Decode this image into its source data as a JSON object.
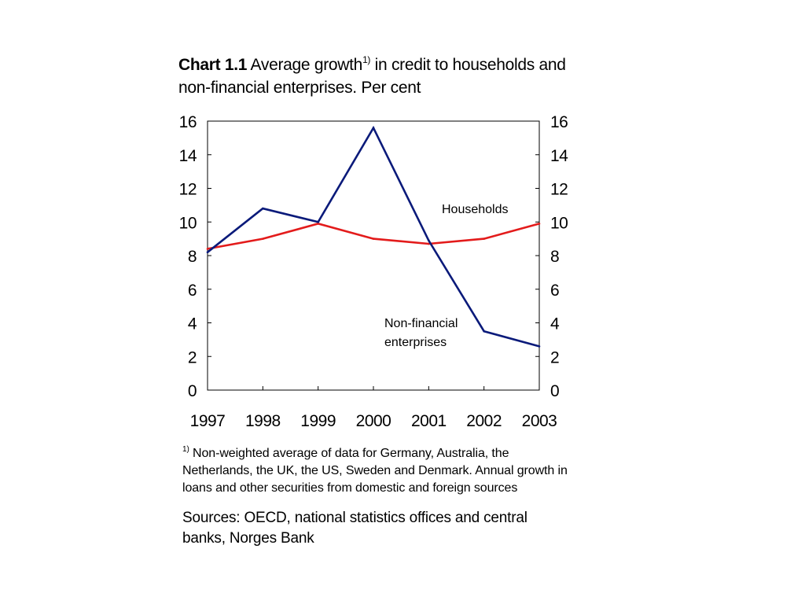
{
  "title": {
    "label": "Chart 1.1",
    "text_before_sup": " Average growth",
    "sup": "1)",
    "text_after_sup": " in credit to households and non-financial enterprises. Per cent"
  },
  "footnote": {
    "marker": "1)",
    "text": " Non-weighted average of data for Germany, Australia, the Netherlands, the UK, the US, Sweden and Denmark. Annual growth in loans and other securities from domestic and foreign sources"
  },
  "sources": "Sources: OECD, national statistics offices and central banks, Norges Bank",
  "chart_data": {
    "type": "line",
    "x": [
      "1997",
      "1998",
      "1999",
      "2000",
      "2001",
      "2002",
      "2003"
    ],
    "ylim": [
      0,
      16
    ],
    "yticks": [
      "0",
      "2",
      "4",
      "6",
      "8",
      "10",
      "12",
      "14",
      "16"
    ],
    "y_axis_sides": [
      "left",
      "right"
    ],
    "grid": false,
    "series": [
      {
        "name": "Households",
        "color": "#e31b1b",
        "values": [
          8.4,
          9.0,
          9.9,
          9.0,
          8.7,
          9.0,
          9.9
        ]
      },
      {
        "name": "Non-financial enterprises",
        "color": "#0a1a7a",
        "values": [
          8.2,
          10.8,
          10.0,
          15.6,
          8.9,
          3.5,
          2.6
        ]
      }
    ],
    "annotations": [
      {
        "lines": [
          "Households"
        ]
      },
      {
        "lines": [
          "Non-financial",
          "enterprises"
        ]
      }
    ]
  }
}
